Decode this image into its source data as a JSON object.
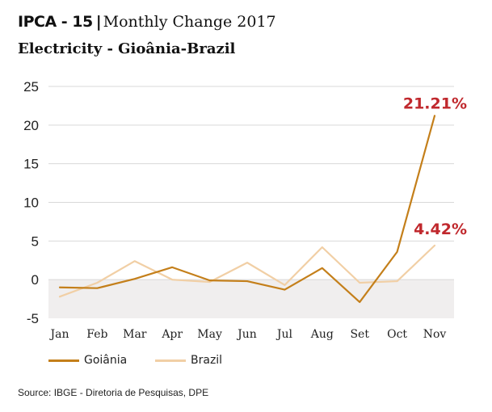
{
  "title": {
    "main": "IPCA - 15",
    "separator": "|",
    "rest": "Monthly Change 2017"
  },
  "subtitle": "Electricity - Gioânia-Brazil",
  "callouts": {
    "goiania": "21.21%",
    "brazil": "4.42%"
  },
  "source": "Source: IBGE - Diretoria de Pesquisas, DPE",
  "colors": {
    "goiania": "#c47f1a",
    "brazil": "#f1cfa5",
    "negative_band": "#f0eeee",
    "grid": "#d9d9d9",
    "callout": "#c0282d"
  },
  "chart_data": {
    "type": "line",
    "title": "Electricity - Gioânia-Brazil",
    "categories": [
      "Jan",
      "Feb",
      "Mar",
      "Apr",
      "May",
      "Jun",
      "Jul",
      "Aug",
      "Set",
      "Oct",
      "Nov"
    ],
    "series": [
      {
        "name": "Goiânia",
        "values": [
          -1.0,
          -1.1,
          0.1,
          1.6,
          -0.1,
          -0.2,
          -1.3,
          1.5,
          -2.9,
          3.6,
          21.21
        ]
      },
      {
        "name": "Brazil",
        "values": [
          -2.2,
          -0.4,
          2.4,
          0.0,
          -0.3,
          2.2,
          -0.7,
          4.2,
          -0.4,
          -0.2,
          4.42
        ]
      }
    ],
    "yticks": [
      25,
      20,
      15,
      10,
      5,
      0,
      -5
    ],
    "ylim": [
      -5,
      25
    ],
    "grid": true,
    "legend": "bottom-left"
  }
}
